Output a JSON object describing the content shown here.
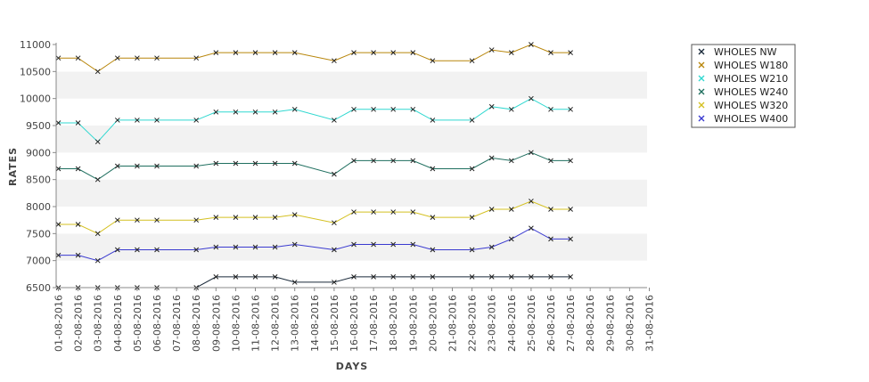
{
  "chart_data": {
    "type": "line",
    "title": "",
    "xlabel": "DAYS",
    "ylabel": "RATES",
    "ylim": [
      6500,
      11000
    ],
    "yticks": [
      6500,
      7000,
      7500,
      8000,
      8500,
      9000,
      9500,
      10000,
      10500,
      11000
    ],
    "grid": "alternating horizontal bands",
    "legend_position": "top-right",
    "x": [
      "01-08-2016",
      "02-08-2016",
      "03-08-2016",
      "04-08-2016",
      "05-08-2016",
      "06-08-2016",
      "07-08-2016",
      "08-08-2016",
      "09-08-2016",
      "10-08-2016",
      "11-08-2016",
      "12-08-2016",
      "13-08-2016",
      "14-08-2016",
      "15-08-2016",
      "16-08-2016",
      "17-08-2016",
      "18-08-2016",
      "19-08-2016",
      "20-08-2016",
      "21-08-2016",
      "22-08-2016",
      "23-08-2016",
      "24-08-2016",
      "25-08-2016",
      "26-08-2016",
      "27-08-2016",
      "28-08-2016",
      "29-08-2016",
      "30-08-2016",
      "31-08-2016"
    ],
    "series": [
      {
        "name": "WHOLES NW",
        "color": "#1a2a3a",
        "points": [
          [
            "01-08-2016",
            6500
          ],
          [
            "02-08-2016",
            6500
          ],
          [
            "03-08-2016",
            6500
          ],
          [
            "04-08-2016",
            6500
          ],
          [
            "05-08-2016",
            6500
          ],
          [
            "06-08-2016",
            6500
          ],
          [
            "08-08-2016",
            6500
          ],
          [
            "09-08-2016",
            6700
          ],
          [
            "10-08-2016",
            6700
          ],
          [
            "11-08-2016",
            6700
          ],
          [
            "12-08-2016",
            6700
          ],
          [
            "13-08-2016",
            6600
          ],
          [
            "15-08-2016",
            6600
          ],
          [
            "16-08-2016",
            6700
          ],
          [
            "17-08-2016",
            6700
          ],
          [
            "18-08-2016",
            6700
          ],
          [
            "19-08-2016",
            6700
          ],
          [
            "20-08-2016",
            6700
          ],
          [
            "22-08-2016",
            6700
          ],
          [
            "23-08-2016",
            6700
          ],
          [
            "24-08-2016",
            6700
          ],
          [
            "25-08-2016",
            6700
          ],
          [
            "26-08-2016",
            6700
          ],
          [
            "27-08-2016",
            6700
          ]
        ]
      },
      {
        "name": "WHOLES W180",
        "color": "#b8860b",
        "points": [
          [
            "01-08-2016",
            10750
          ],
          [
            "02-08-2016",
            10750
          ],
          [
            "03-08-2016",
            10500
          ],
          [
            "04-08-2016",
            10750
          ],
          [
            "05-08-2016",
            10750
          ],
          [
            "06-08-2016",
            10750
          ],
          [
            "08-08-2016",
            10750
          ],
          [
            "09-08-2016",
            10850
          ],
          [
            "10-08-2016",
            10850
          ],
          [
            "11-08-2016",
            10850
          ],
          [
            "12-08-2016",
            10850
          ],
          [
            "13-08-2016",
            10850
          ],
          [
            "15-08-2016",
            10700
          ],
          [
            "16-08-2016",
            10850
          ],
          [
            "17-08-2016",
            10850
          ],
          [
            "18-08-2016",
            10850
          ],
          [
            "19-08-2016",
            10850
          ],
          [
            "20-08-2016",
            10700
          ],
          [
            "22-08-2016",
            10700
          ],
          [
            "23-08-2016",
            10900
          ],
          [
            "24-08-2016",
            10850
          ],
          [
            "25-08-2016",
            11000
          ],
          [
            "26-08-2016",
            10850
          ],
          [
            "27-08-2016",
            10850
          ]
        ]
      },
      {
        "name": "WHOLES W210",
        "color": "#30d8d0",
        "points": [
          [
            "01-08-2016",
            9550
          ],
          [
            "02-08-2016",
            9550
          ],
          [
            "03-08-2016",
            9200
          ],
          [
            "04-08-2016",
            9600
          ],
          [
            "05-08-2016",
            9600
          ],
          [
            "06-08-2016",
            9600
          ],
          [
            "08-08-2016",
            9600
          ],
          [
            "09-08-2016",
            9750
          ],
          [
            "10-08-2016",
            9750
          ],
          [
            "11-08-2016",
            9750
          ],
          [
            "12-08-2016",
            9750
          ],
          [
            "13-08-2016",
            9800
          ],
          [
            "15-08-2016",
            9600
          ],
          [
            "16-08-2016",
            9800
          ],
          [
            "17-08-2016",
            9800
          ],
          [
            "18-08-2016",
            9800
          ],
          [
            "19-08-2016",
            9800
          ],
          [
            "20-08-2016",
            9600
          ],
          [
            "22-08-2016",
            9600
          ],
          [
            "23-08-2016",
            9850
          ],
          [
            "24-08-2016",
            9800
          ],
          [
            "25-08-2016",
            10000
          ],
          [
            "26-08-2016",
            9800
          ],
          [
            "27-08-2016",
            9800
          ]
        ]
      },
      {
        "name": "WHOLES W240",
        "color": "#1f6f5f",
        "points": [
          [
            "01-08-2016",
            8700
          ],
          [
            "02-08-2016",
            8700
          ],
          [
            "03-08-2016",
            8500
          ],
          [
            "04-08-2016",
            8750
          ],
          [
            "05-08-2016",
            8750
          ],
          [
            "06-08-2016",
            8750
          ],
          [
            "08-08-2016",
            8750
          ],
          [
            "09-08-2016",
            8800
          ],
          [
            "10-08-2016",
            8800
          ],
          [
            "11-08-2016",
            8800
          ],
          [
            "12-08-2016",
            8800
          ],
          [
            "13-08-2016",
            8800
          ],
          [
            "15-08-2016",
            8600
          ],
          [
            "16-08-2016",
            8850
          ],
          [
            "17-08-2016",
            8850
          ],
          [
            "18-08-2016",
            8850
          ],
          [
            "19-08-2016",
            8850
          ],
          [
            "20-08-2016",
            8700
          ],
          [
            "22-08-2016",
            8700
          ],
          [
            "23-08-2016",
            8900
          ],
          [
            "24-08-2016",
            8850
          ],
          [
            "25-08-2016",
            9000
          ],
          [
            "26-08-2016",
            8850
          ],
          [
            "27-08-2016",
            8850
          ]
        ]
      },
      {
        "name": "WHOLES W320",
        "color": "#d4c020",
        "points": [
          [
            "01-08-2016",
            7670
          ],
          [
            "02-08-2016",
            7670
          ],
          [
            "03-08-2016",
            7500
          ],
          [
            "04-08-2016",
            7750
          ],
          [
            "05-08-2016",
            7750
          ],
          [
            "06-08-2016",
            7750
          ],
          [
            "08-08-2016",
            7750
          ],
          [
            "09-08-2016",
            7800
          ],
          [
            "10-08-2016",
            7800
          ],
          [
            "11-08-2016",
            7800
          ],
          [
            "12-08-2016",
            7800
          ],
          [
            "13-08-2016",
            7850
          ],
          [
            "15-08-2016",
            7700
          ],
          [
            "16-08-2016",
            7900
          ],
          [
            "17-08-2016",
            7900
          ],
          [
            "18-08-2016",
            7900
          ],
          [
            "19-08-2016",
            7900
          ],
          [
            "20-08-2016",
            7800
          ],
          [
            "22-08-2016",
            7800
          ],
          [
            "23-08-2016",
            7950
          ],
          [
            "24-08-2016",
            7950
          ],
          [
            "25-08-2016",
            8100
          ],
          [
            "26-08-2016",
            7950
          ],
          [
            "27-08-2016",
            7950
          ]
        ]
      },
      {
        "name": "WHOLES W400",
        "color": "#3a3ad0",
        "points": [
          [
            "01-08-2016",
            7100
          ],
          [
            "02-08-2016",
            7100
          ],
          [
            "03-08-2016",
            7000
          ],
          [
            "04-08-2016",
            7200
          ],
          [
            "05-08-2016",
            7200
          ],
          [
            "06-08-2016",
            7200
          ],
          [
            "08-08-2016",
            7200
          ],
          [
            "09-08-2016",
            7250
          ],
          [
            "10-08-2016",
            7250
          ],
          [
            "11-08-2016",
            7250
          ],
          [
            "12-08-2016",
            7250
          ],
          [
            "13-08-2016",
            7300
          ],
          [
            "15-08-2016",
            7200
          ],
          [
            "16-08-2016",
            7300
          ],
          [
            "17-08-2016",
            7300
          ],
          [
            "18-08-2016",
            7300
          ],
          [
            "19-08-2016",
            7300
          ],
          [
            "20-08-2016",
            7200
          ],
          [
            "22-08-2016",
            7200
          ],
          [
            "23-08-2016",
            7250
          ],
          [
            "24-08-2016",
            7400
          ],
          [
            "25-08-2016",
            7600
          ],
          [
            "26-08-2016",
            7400
          ],
          [
            "27-08-2016",
            7400
          ]
        ]
      }
    ]
  }
}
